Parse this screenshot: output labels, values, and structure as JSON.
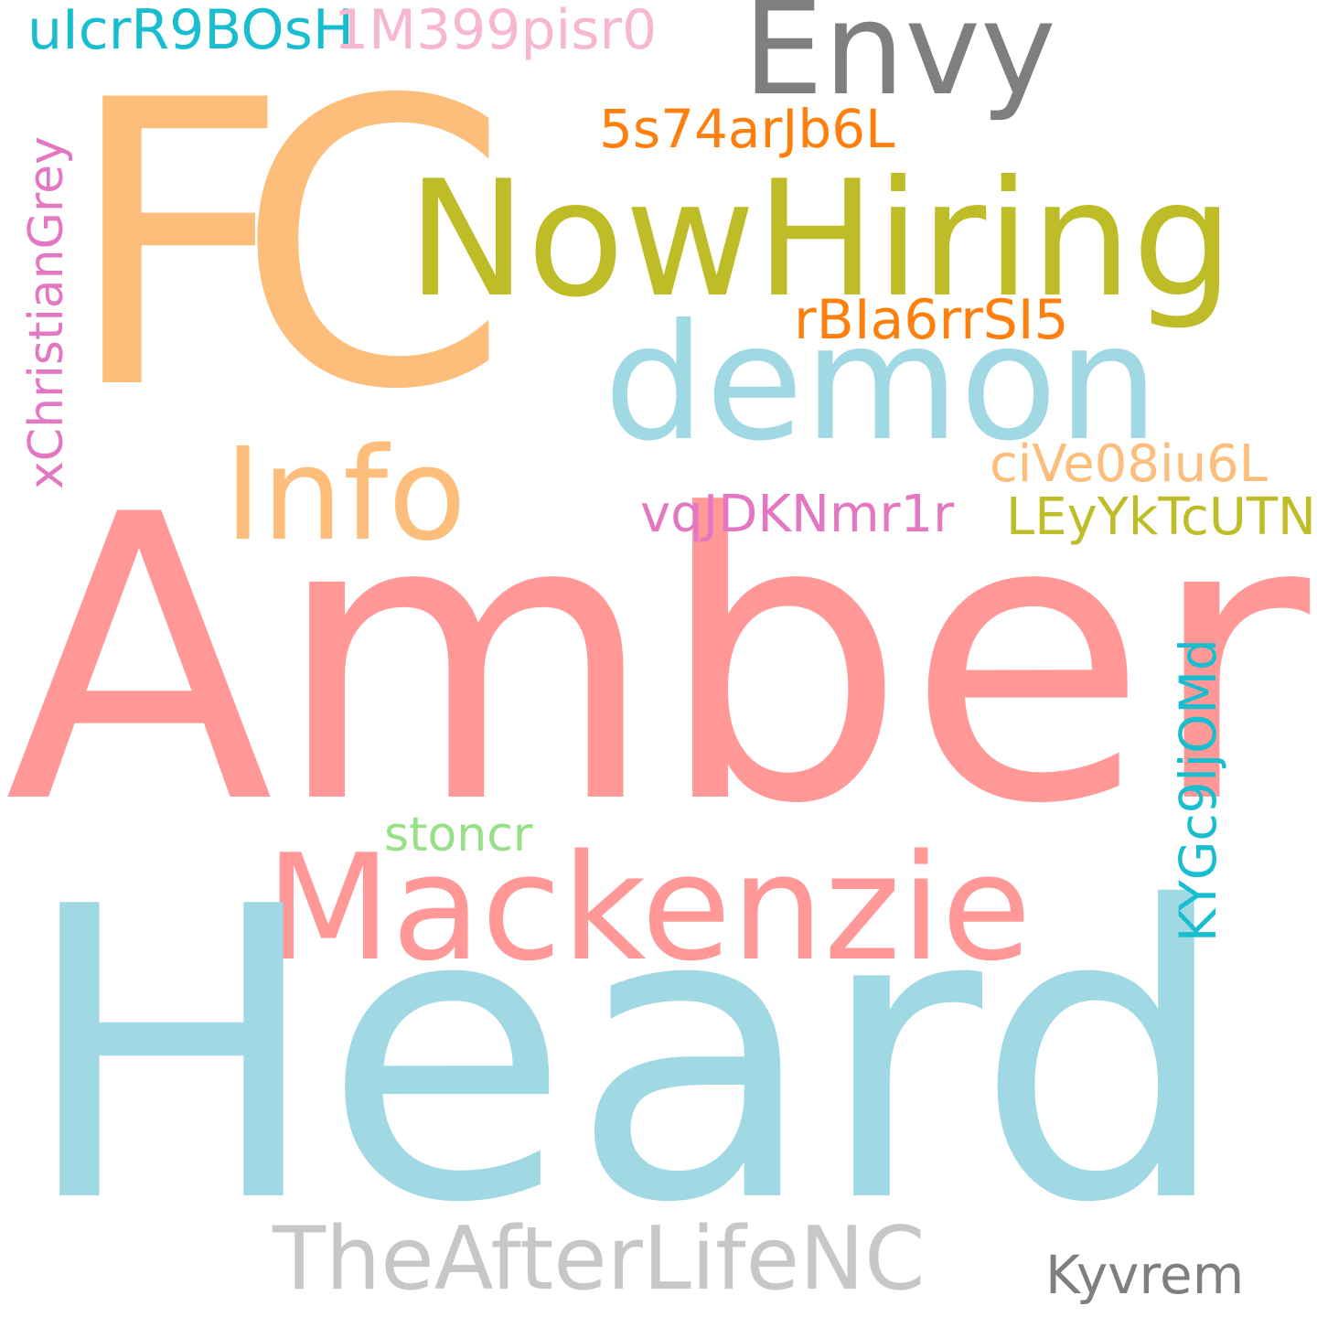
{
  "colors": {
    "light_orange": "#FDBD7B",
    "olive": "#BEBD28",
    "gray": "#7F7F7F",
    "light_blue": "#A0D9E4",
    "salmon": "#FF9896",
    "light_gray": "#C7C7C7",
    "cyan": "#18BDCF",
    "pink": "#F7B6D2",
    "orange": "#FF7F0E",
    "light_green": "#98DF89",
    "magenta": "#E377C2"
  },
  "words": {
    "fc": "FC",
    "envy": "Envy",
    "nowhiring": "NowHiring",
    "demon": "demon",
    "info": "Info",
    "amber": "Amber",
    "mackenzie": "Mackenzie",
    "heard": "Heard",
    "afterlife": "TheAfterLifeNC",
    "kyvrem": "Kyvrem",
    "uicr": "uIcrR9BOsH",
    "m399": "1M399pisr0",
    "s74": "5s74arJb6L",
    "rbia": "rBIa6rrSI5",
    "cive": "ciVe08iu6L",
    "vqjd": "vqJDKNmr1r",
    "leyy": "LEyYkTcUTN",
    "stoncr": "stoncr",
    "xchris": "xChristianGrey",
    "kygc": "KYGc9ljOMd"
  }
}
